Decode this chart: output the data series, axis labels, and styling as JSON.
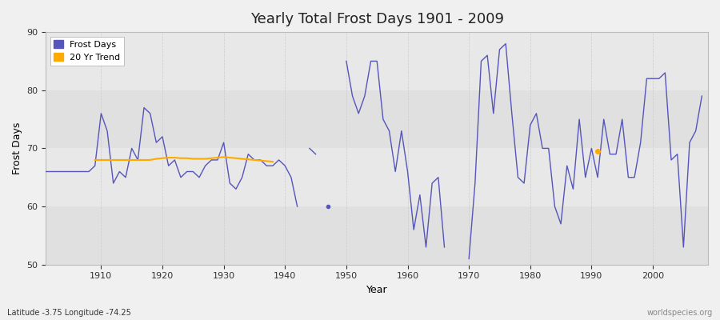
{
  "title": "Yearly Total Frost Days 1901 - 2009",
  "xlabel": "Year",
  "ylabel": "Frost Days",
  "ylim": [
    50,
    90
  ],
  "xlim": [
    1901,
    2009
  ],
  "yticks": [
    50,
    60,
    70,
    80,
    90
  ],
  "background_color": "#f0f0f0",
  "plot_bg_color": "#e8e8e8",
  "frost_color": "#5555bb",
  "trend_color": "#ffaa00",
  "subtitle": "Latitude -3.75 Longitude -74.25",
  "watermark": "worldspecies.org",
  "frost_days": [
    [
      1901,
      66
    ],
    [
      1902,
      66
    ],
    [
      1903,
      66
    ],
    [
      1904,
      66
    ],
    [
      1905,
      66
    ],
    [
      1906,
      66
    ],
    [
      1907,
      66
    ],
    [
      1908,
      66
    ],
    [
      1909,
      67
    ],
    [
      1910,
      76
    ],
    [
      1911,
      73
    ],
    [
      1912,
      64
    ],
    [
      1913,
      66
    ],
    [
      1914,
      65
    ],
    [
      1915,
      70
    ],
    [
      1916,
      68
    ],
    [
      1917,
      77
    ],
    [
      1918,
      76
    ],
    [
      1919,
      71
    ],
    [
      1920,
      72
    ],
    [
      1921,
      67
    ],
    [
      1922,
      68
    ],
    [
      1923,
      65
    ],
    [
      1924,
      66
    ],
    [
      1925,
      66
    ],
    [
      1926,
      65
    ],
    [
      1927,
      67
    ],
    [
      1928,
      68
    ],
    [
      1929,
      68
    ],
    [
      1930,
      71
    ],
    [
      1931,
      64
    ],
    [
      1932,
      63
    ],
    [
      1933,
      65
    ],
    [
      1934,
      69
    ],
    [
      1935,
      68
    ],
    [
      1936,
      68
    ],
    [
      1937,
      67
    ],
    [
      1938,
      67
    ],
    [
      1939,
      68
    ],
    [
      1940,
      67
    ],
    [
      1941,
      65
    ],
    [
      1942,
      60
    ],
    [
      1944,
      70
    ],
    [
      1945,
      69
    ],
    [
      1947,
      60
    ],
    [
      1950,
      85
    ],
    [
      1951,
      79
    ],
    [
      1952,
      76
    ],
    [
      1953,
      79
    ],
    [
      1954,
      85
    ],
    [
      1955,
      85
    ],
    [
      1956,
      75
    ],
    [
      1957,
      73
    ],
    [
      1958,
      66
    ],
    [
      1959,
      73
    ],
    [
      1960,
      66
    ],
    [
      1961,
      56
    ],
    [
      1962,
      62
    ],
    [
      1963,
      53
    ],
    [
      1964,
      64
    ],
    [
      1965,
      65
    ],
    [
      1966,
      53
    ],
    [
      1970,
      51
    ],
    [
      1971,
      64
    ],
    [
      1972,
      85
    ],
    [
      1973,
      86
    ],
    [
      1974,
      76
    ],
    [
      1975,
      87
    ],
    [
      1976,
      88
    ],
    [
      1977,
      76
    ],
    [
      1978,
      65
    ],
    [
      1979,
      64
    ],
    [
      1980,
      74
    ],
    [
      1981,
      76
    ],
    [
      1982,
      70
    ],
    [
      1983,
      70
    ],
    [
      1984,
      60
    ],
    [
      1985,
      57
    ],
    [
      1986,
      67
    ],
    [
      1987,
      63
    ],
    [
      1988,
      75
    ],
    [
      1989,
      65
    ],
    [
      1990,
      70
    ],
    [
      1991,
      65
    ],
    [
      1992,
      75
    ],
    [
      1993,
      69
    ],
    [
      1994,
      69
    ],
    [
      1995,
      75
    ],
    [
      1996,
      65
    ],
    [
      1997,
      65
    ],
    [
      1998,
      71
    ],
    [
      1999,
      82
    ],
    [
      2000,
      82
    ],
    [
      2001,
      82
    ],
    [
      2002,
      83
    ],
    [
      2003,
      68
    ],
    [
      2004,
      69
    ],
    [
      2005,
      53
    ],
    [
      2006,
      71
    ],
    [
      2007,
      73
    ],
    [
      2008,
      79
    ]
  ],
  "trend_days": [
    [
      1909,
      68
    ],
    [
      1910,
      68
    ],
    [
      1911,
      68
    ],
    [
      1912,
      68
    ],
    [
      1913,
      68
    ],
    [
      1914,
      68
    ],
    [
      1915,
      68
    ],
    [
      1916,
      68
    ],
    [
      1917,
      68
    ],
    [
      1918,
      68
    ],
    [
      1919,
      68.2
    ],
    [
      1920,
      68.3
    ],
    [
      1921,
      68.4
    ],
    [
      1922,
      68.4
    ],
    [
      1923,
      68.3
    ],
    [
      1924,
      68.3
    ],
    [
      1925,
      68.2
    ],
    [
      1926,
      68.2
    ],
    [
      1927,
      68.2
    ],
    [
      1928,
      68.3
    ],
    [
      1929,
      68.4
    ],
    [
      1930,
      68.5
    ],
    [
      1931,
      68.4
    ],
    [
      1932,
      68.3
    ],
    [
      1933,
      68.2
    ],
    [
      1934,
      68.1
    ],
    [
      1935,
      68.0
    ],
    [
      1936,
      67.9
    ],
    [
      1937,
      67.8
    ],
    [
      1938,
      67.7
    ],
    [
      1991,
      69.5
    ]
  ],
  "band_colors": [
    "#e0e0e0",
    "#e8e8e8"
  ],
  "grid_color": "#cccccc"
}
